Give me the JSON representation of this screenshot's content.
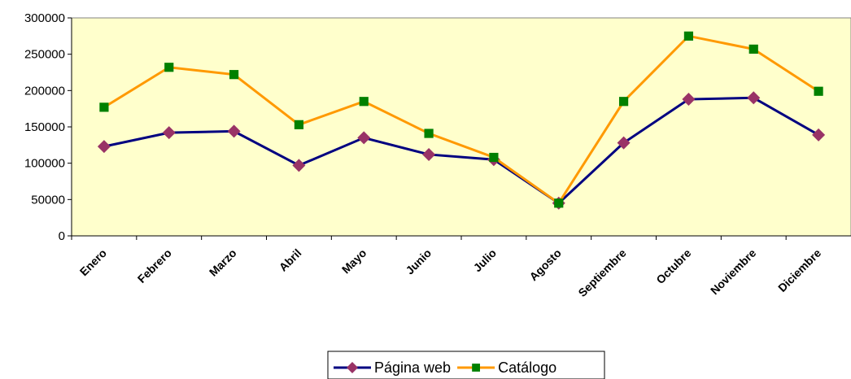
{
  "chart_data": {
    "type": "line",
    "categories": [
      "Enero",
      "Febrero",
      "Marzo",
      "Abril",
      "Mayo",
      "Junio",
      "Julio",
      "Agosto",
      "Septiembre",
      "Octubre",
      "Noviembre",
      "Diciembre"
    ],
    "series": [
      {
        "name": "Página web",
        "color": "#000080",
        "marker_color": "#993366",
        "marker": "diamond",
        "values": [
          123000,
          142000,
          144000,
          97000,
          135000,
          112000,
          105000,
          45000,
          128000,
          188000,
          190000,
          139000
        ]
      },
      {
        "name": "Catálogo",
        "color": "#FF9900",
        "marker_color": "#008000",
        "marker": "square",
        "values": [
          177000,
          232000,
          222000,
          153000,
          185000,
          141000,
          108000,
          45000,
          185000,
          275000,
          257000,
          199000
        ]
      }
    ],
    "ylim": [
      0,
      300000
    ],
    "yticks": [
      0,
      50000,
      100000,
      150000,
      200000,
      250000,
      300000
    ],
    "plot_background": "#FFFFCC",
    "grid": false,
    "legend": "bottom"
  }
}
